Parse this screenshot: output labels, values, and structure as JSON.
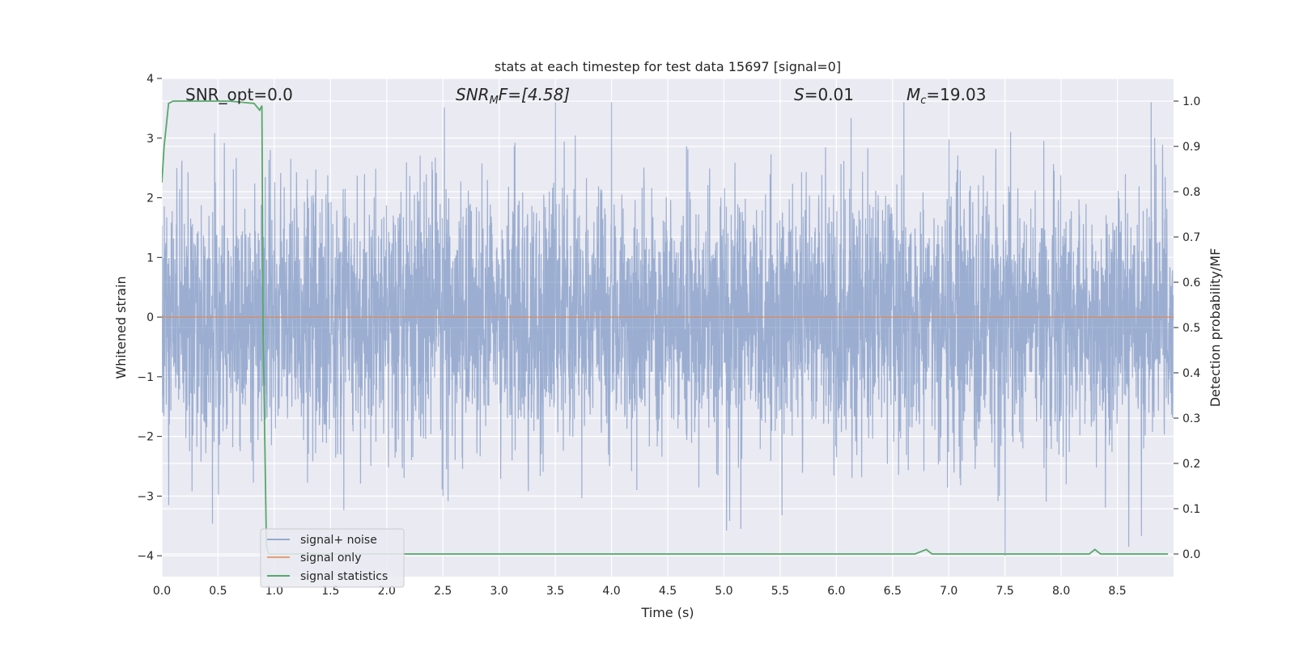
{
  "chart_data": {
    "type": "line",
    "title": "stats at each timestep for test data 15697 [signal=0]",
    "xlabel": "Time (s)",
    "ylabel": "Whitened strain",
    "ylabel_right": "Detection probability/MF",
    "xlim": [
      0,
      9.0
    ],
    "ylim": [
      -4.35,
      4.0
    ],
    "ylim_right": [
      -0.05,
      1.05
    ],
    "x_ticks": [
      "0.0",
      "0.5",
      "1.0",
      "1.5",
      "2.0",
      "2.5",
      "3.0",
      "3.5",
      "4.0",
      "4.5",
      "5.0",
      "5.5",
      "6.0",
      "6.5",
      "7.0",
      "7.5",
      "8.0",
      "8.5"
    ],
    "y_ticks": [
      "4",
      "3",
      "2",
      "1",
      "0",
      "−1",
      "−2",
      "−3",
      "−4"
    ],
    "y_ticks_right": [
      "1.0",
      "0.9",
      "0.8",
      "0.7",
      "0.6",
      "0.5",
      "0.4",
      "0.3",
      "0.2",
      "0.1",
      "0.0"
    ],
    "grid": true,
    "legend_position": "lower-left",
    "annotations": {
      "snr_opt": "SNR_opt=0.0",
      "snr_mf_base": "SNR",
      "snr_mf_sub": "M",
      "snr_mf_rest": "F=[4.58]",
      "s_sym": "S",
      "s_val": "=0.01",
      "mc_sym": "M",
      "mc_sub": "c",
      "mc_val": "=19.03"
    },
    "series": [
      {
        "name": "signal+ noise",
        "color": "#4c72b0",
        "axis": "left",
        "kind": "noise",
        "amplitude_std": 1.0,
        "y_range": [
          -4.0,
          3.6
        ],
        "spikes": [
          {
            "x": 0.06,
            "y": -3.15
          },
          {
            "x": 2.5,
            "y": -3.0
          },
          {
            "x": 3.5,
            "y": 3.6
          },
          {
            "x": 4.0,
            "y": 3.6
          },
          {
            "x": 5.15,
            "y": -3.55
          },
          {
            "x": 6.6,
            "y": 3.6
          },
          {
            "x": 7.5,
            "y": -4.0
          },
          {
            "x": 7.55,
            "y": 3.1
          },
          {
            "x": 8.6,
            "y": -3.85
          },
          {
            "x": 8.8,
            "y": 3.6
          }
        ]
      },
      {
        "name": "signal only",
        "color": "#dd8452",
        "axis": "left",
        "x": [
          0.0,
          9.0
        ],
        "y": [
          0.0,
          0.0
        ]
      },
      {
        "name": "signal statistics",
        "color": "#55a868",
        "axis": "right",
        "x": [
          0.0,
          0.02,
          0.06,
          0.1,
          0.3,
          0.6,
          0.82,
          0.87,
          0.89,
          0.9,
          0.93,
          0.95,
          1.0,
          6.7,
          6.75,
          6.8,
          6.85,
          8.25,
          8.3,
          8.35,
          8.95
        ],
        "y": [
          0.82,
          0.9,
          0.995,
          1.0,
          1.0,
          1.0,
          0.995,
          0.98,
          0.99,
          0.5,
          0.02,
          0.0,
          0.0,
          0.0,
          0.005,
          0.01,
          0.0,
          0.0,
          0.01,
          0.0,
          0.0
        ]
      }
    ]
  }
}
